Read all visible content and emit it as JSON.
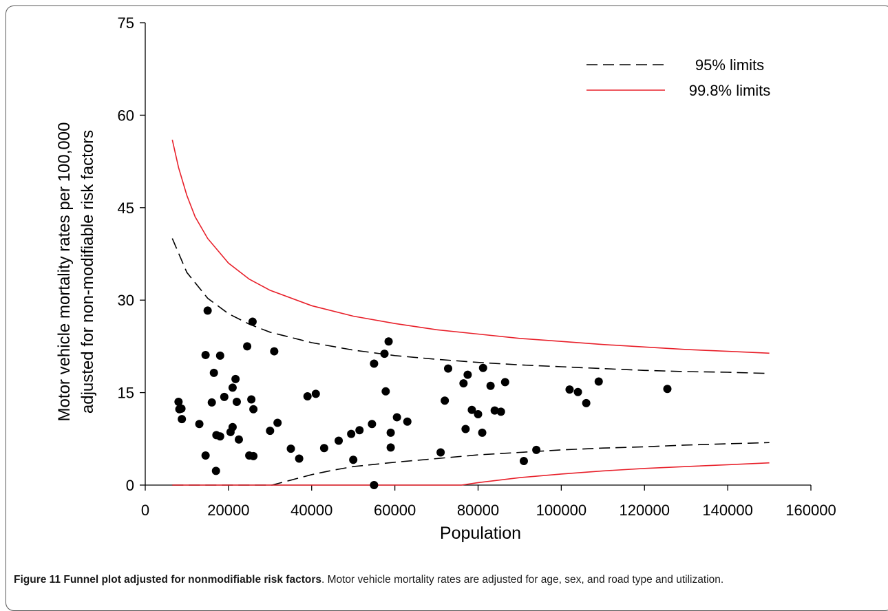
{
  "chart_data": {
    "type": "scatter",
    "xlabel": "Population",
    "ylabel": [
      "Motor vehicle mortality rates per 100,000",
      "adjusted for non-modifiable risk factors"
    ],
    "xlim": [
      0,
      160000
    ],
    "ylim": [
      0,
      75
    ],
    "xticks": [
      0,
      20000,
      40000,
      60000,
      80000,
      100000,
      120000,
      140000,
      160000
    ],
    "yticks": [
      0,
      15,
      30,
      45,
      60,
      75
    ],
    "grid": false,
    "legend": {
      "position": "top-right",
      "entries": [
        {
          "label": "95% limits",
          "style": "dashed",
          "color": "#000000"
        },
        {
          "label": "99.8% limits",
          "style": "solid",
          "color": "#e8202a"
        }
      ]
    },
    "series": [
      {
        "kind": "points",
        "color": "#000000",
        "points": [
          [
            8000,
            13.5
          ],
          [
            8200,
            12.3
          ],
          [
            8700,
            12.4
          ],
          [
            8800,
            10.7
          ],
          [
            13000,
            9.9
          ],
          [
            14500,
            4.8
          ],
          [
            14500,
            21.1
          ],
          [
            15000,
            28.3
          ],
          [
            16000,
            13.4
          ],
          [
            16500,
            18.2
          ],
          [
            17000,
            2.3
          ],
          [
            17100,
            8.1
          ],
          [
            18000,
            7.9
          ],
          [
            18000,
            21.0
          ],
          [
            19000,
            14.3
          ],
          [
            20500,
            8.6
          ],
          [
            21000,
            15.8
          ],
          [
            21000,
            9.4
          ],
          [
            21700,
            17.2
          ],
          [
            22000,
            13.5
          ],
          [
            22500,
            7.4
          ],
          [
            24500,
            22.5
          ],
          [
            25000,
            4.8
          ],
          [
            25500,
            13.9
          ],
          [
            25800,
            26.5
          ],
          [
            26000,
            4.7
          ],
          [
            26000,
            12.3
          ],
          [
            30000,
            8.8
          ],
          [
            31000,
            21.7
          ],
          [
            31800,
            10.1
          ],
          [
            35000,
            5.9
          ],
          [
            37000,
            4.3
          ],
          [
            39000,
            14.4
          ],
          [
            41000,
            14.8
          ],
          [
            43000,
            6.0
          ],
          [
            46500,
            7.2
          ],
          [
            49500,
            8.3
          ],
          [
            50000,
            4.1
          ],
          [
            51500,
            8.9
          ],
          [
            54500,
            9.9
          ],
          [
            55000,
            19.7
          ],
          [
            55000,
            0.0
          ],
          [
            57500,
            21.3
          ],
          [
            57800,
            15.2
          ],
          [
            58500,
            23.3
          ],
          [
            59000,
            8.5
          ],
          [
            59000,
            6.1
          ],
          [
            60500,
            11.0
          ],
          [
            63000,
            10.3
          ],
          [
            71000,
            5.3
          ],
          [
            72000,
            13.7
          ],
          [
            72800,
            18.9
          ],
          [
            76500,
            16.5
          ],
          [
            77000,
            9.1
          ],
          [
            77500,
            17.9
          ],
          [
            78500,
            12.2
          ],
          [
            80000,
            11.5
          ],
          [
            81000,
            8.5
          ],
          [
            81200,
            19.0
          ],
          [
            83000,
            16.1
          ],
          [
            84000,
            12.1
          ],
          [
            85500,
            11.9
          ],
          [
            86500,
            16.7
          ],
          [
            91000,
            3.9
          ],
          [
            94000,
            5.7
          ],
          [
            102000,
            15.5
          ],
          [
            104000,
            15.1
          ],
          [
            106000,
            13.3
          ],
          [
            109000,
            16.8
          ],
          [
            125500,
            15.6
          ]
        ]
      },
      {
        "name": "95% limits",
        "kind": "line",
        "style": "dashed",
        "color": "#000000",
        "upper": [
          [
            6500,
            40.0
          ],
          [
            10000,
            34.5
          ],
          [
            15000,
            30.3
          ],
          [
            20000,
            27.8
          ],
          [
            25000,
            26.1
          ],
          [
            30000,
            24.8
          ],
          [
            40000,
            23.1
          ],
          [
            50000,
            21.9
          ],
          [
            60000,
            21.0
          ],
          [
            70000,
            20.4
          ],
          [
            80000,
            19.9
          ],
          [
            90000,
            19.5
          ],
          [
            100000,
            19.2
          ],
          [
            110000,
            18.9
          ],
          [
            120000,
            18.6
          ],
          [
            130000,
            18.4
          ],
          [
            140000,
            18.3
          ],
          [
            150000,
            18.1
          ]
        ],
        "lower": [
          [
            6500,
            0.0
          ],
          [
            30500,
            0.0
          ],
          [
            35000,
            0.8
          ],
          [
            40000,
            1.7
          ],
          [
            45000,
            2.4
          ],
          [
            50000,
            3.0
          ],
          [
            60000,
            3.7
          ],
          [
            70000,
            4.3
          ],
          [
            80000,
            4.9
          ],
          [
            90000,
            5.3
          ],
          [
            100000,
            5.7
          ],
          [
            110000,
            6.0
          ],
          [
            120000,
            6.2
          ],
          [
            130000,
            6.5
          ],
          [
            140000,
            6.7
          ],
          [
            150000,
            6.9
          ]
        ]
      },
      {
        "name": "99.8% limits",
        "kind": "line",
        "style": "solid",
        "color": "#e8202a",
        "upper": [
          [
            6500,
            56.0
          ],
          [
            8000,
            51.5
          ],
          [
            10000,
            47.0
          ],
          [
            12000,
            43.5
          ],
          [
            15000,
            40.0
          ],
          [
            20000,
            36.0
          ],
          [
            25000,
            33.4
          ],
          [
            30000,
            31.6
          ],
          [
            40000,
            29.1
          ],
          [
            50000,
            27.4
          ],
          [
            60000,
            26.2
          ],
          [
            70000,
            25.2
          ],
          [
            80000,
            24.5
          ],
          [
            90000,
            23.8
          ],
          [
            100000,
            23.3
          ],
          [
            110000,
            22.8
          ],
          [
            120000,
            22.4
          ],
          [
            130000,
            22.0
          ],
          [
            140000,
            21.7
          ],
          [
            150000,
            21.4
          ]
        ],
        "lower": [
          [
            6500,
            0.0
          ],
          [
            76000,
            0.0
          ],
          [
            80000,
            0.4
          ],
          [
            90000,
            1.2
          ],
          [
            100000,
            1.8
          ],
          [
            110000,
            2.3
          ],
          [
            120000,
            2.7
          ],
          [
            130000,
            3.0
          ],
          [
            140000,
            3.3
          ],
          [
            150000,
            3.6
          ]
        ]
      }
    ]
  },
  "caption": {
    "bold": "Figure 11 Funnel plot adjusted for nonmodifiable risk factors",
    "text": ". Motor vehicle mortality rates are adjusted for age, sex, and road type and utilization."
  }
}
